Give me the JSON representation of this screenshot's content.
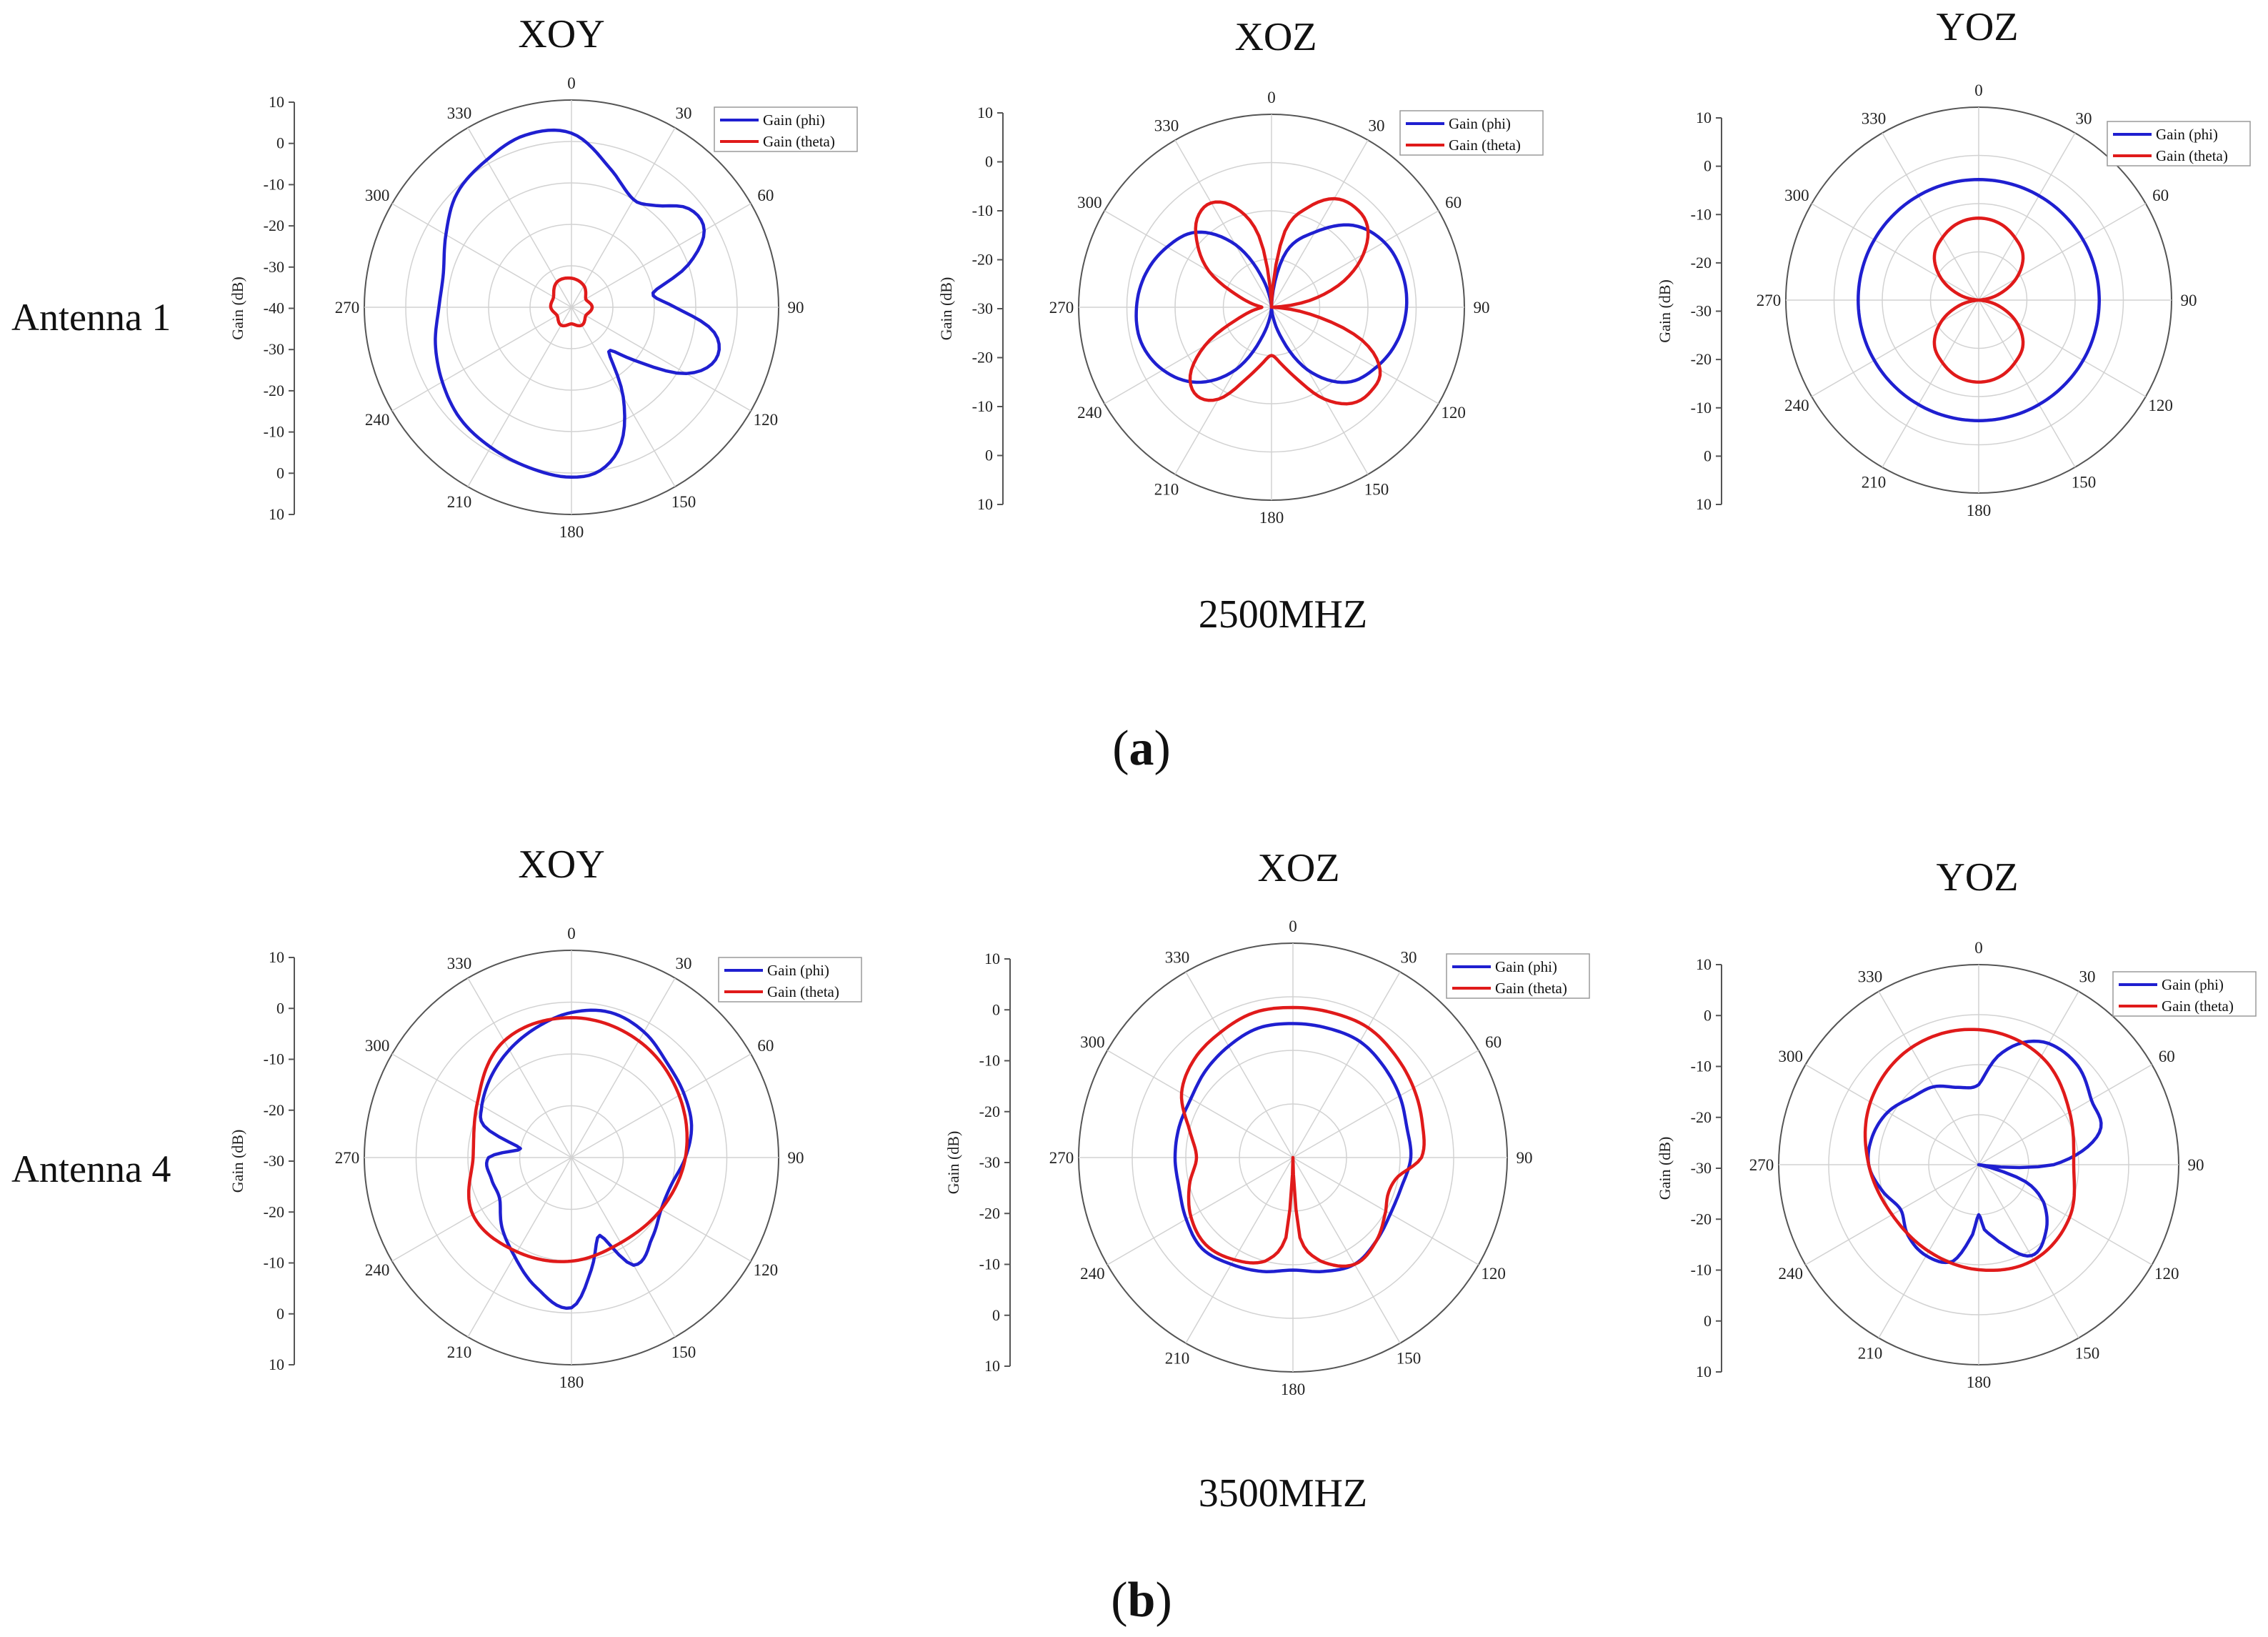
{
  "figure": {
    "row_a": {
      "label": "Antenna 1",
      "frequency": "2500MHZ",
      "caption_letter": "a"
    },
    "row_b": {
      "label": "Antenna 4",
      "frequency": "3500MHZ",
      "caption_letter": "b"
    }
  },
  "colors": {
    "phi": "#1f1fd0",
    "theta": "#e01a1a",
    "grid": "#d2d2d2",
    "axis": "#555555"
  },
  "chart_data": [
    {
      "type": "polar-line",
      "title": "XOY",
      "row": "a",
      "ylabel": "Gain (dB)",
      "radial_ticks": [
        "10",
        "0",
        "-10",
        "-20",
        "-30",
        "-40",
        "-30",
        "-20",
        "-10",
        "0",
        "10"
      ],
      "r_range": [
        -40,
        10
      ],
      "angle_ticks": [
        "0",
        "30",
        "60",
        "90",
        "120",
        "150",
        "180",
        "210",
        "240",
        "270",
        "300",
        "330"
      ],
      "legend": [
        "Gain (phi)",
        "Gain (theta)"
      ],
      "series": [
        {
          "name": "Gain (phi)",
          "angles": [
            0,
            15,
            30,
            40,
            50,
            60,
            70,
            80,
            90,
            100,
            110,
            120,
            130,
            140,
            150,
            160,
            170,
            180,
            195,
            210,
            225,
            240,
            255,
            270,
            285,
            300,
            315,
            330,
            345
          ],
          "values": [
            2,
            -5,
            -10,
            -8,
            -3,
            -3,
            -10,
            -20,
            -15,
            -5,
            -3,
            -8,
            -20,
            -26,
            -15,
            -5,
            0,
            1,
            0,
            -1,
            -2,
            -4,
            -6,
            -8,
            -8,
            -5,
            -1,
            1,
            3
          ]
        },
        {
          "name": "Gain (theta)",
          "angles": [
            0,
            30,
            60,
            90,
            120,
            150,
            180,
            210,
            240,
            270,
            300,
            330
          ],
          "values": [
            -33,
            -34,
            -36,
            -35,
            -36,
            -35,
            -36,
            -35,
            -36,
            -35,
            -35,
            -33
          ]
        }
      ]
    },
    {
      "type": "polar-line",
      "title": "XOZ",
      "row": "a",
      "ylabel": "Gain (dB)",
      "radial_ticks": [
        "10",
        "0",
        "-10",
        "-20",
        "-30",
        "-20",
        "-10",
        "0",
        "10"
      ],
      "r_range": [
        -30,
        10
      ],
      "angle_ticks": [
        "0",
        "30",
        "60",
        "90",
        "120",
        "150",
        "180",
        "210",
        "240",
        "270",
        "300",
        "330"
      ],
      "legend": [
        "Gain (phi)",
        "Gain (theta)"
      ],
      "series": [
        {
          "name": "Gain (phi)",
          "angles": [
            0,
            15,
            30,
            45,
            60,
            75,
            90,
            105,
            120,
            135,
            150,
            165,
            180,
            195,
            210,
            225,
            240,
            255,
            270,
            285,
            300,
            315,
            330,
            345
          ],
          "values": [
            -30,
            -18,
            -12,
            -6,
            -3,
            -2,
            -2,
            -3,
            -5,
            -8,
            -15,
            -25,
            -30,
            -25,
            -15,
            -8,
            -4,
            -2,
            -2,
            -3,
            -5,
            -8,
            -15,
            -25
          ]
        },
        {
          "name": "Gain (theta)",
          "angles": [
            0,
            10,
            20,
            30,
            40,
            50,
            60,
            70,
            80,
            90,
            100,
            110,
            120,
            130,
            140,
            150,
            160,
            170,
            180,
            190,
            200,
            210,
            220,
            230,
            240,
            250,
            260,
            270,
            280,
            290,
            300,
            310,
            320,
            330,
            340,
            350
          ],
          "values": [
            -30,
            -14,
            -8,
            -4,
            -3,
            -4,
            -8,
            -14,
            -22,
            -30,
            -22,
            -10,
            -4,
            -3,
            -4,
            -8,
            -14,
            -18,
            -20,
            -18,
            -14,
            -8,
            -6,
            -8,
            -14,
            -22,
            -26,
            -28,
            -26,
            -22,
            -15,
            -10,
            -6,
            -5,
            -8,
            -15
          ]
        }
      ]
    },
    {
      "type": "polar-line",
      "title": "YOZ",
      "row": "a",
      "ylabel": "Gain (dB)",
      "radial_ticks": [
        "10",
        "0",
        "-10",
        "-20",
        "-30",
        "-20",
        "-10",
        "0",
        "10"
      ],
      "r_range": [
        -30,
        10
      ],
      "angle_ticks": [
        "0",
        "30",
        "60",
        "90",
        "120",
        "150",
        "180",
        "210",
        "240",
        "270",
        "300",
        "330"
      ],
      "legend": [
        "Gain (phi)",
        "Gain (theta)"
      ],
      "series": [
        {
          "name": "Gain (phi)",
          "angles": [
            0,
            30,
            60,
            90,
            120,
            150,
            180,
            210,
            240,
            270,
            300,
            330
          ],
          "values": [
            -5,
            -5,
            -5,
            -5,
            -5,
            -5,
            -5,
            -5,
            -5,
            -5,
            -5,
            -5
          ]
        },
        {
          "name": "Gain (theta)",
          "angles": [
            0,
            15,
            30,
            45,
            60,
            75,
            90,
            105,
            120,
            135,
            150,
            165,
            180,
            195,
            210,
            225,
            240,
            255,
            270,
            285,
            300,
            315,
            330,
            345
          ],
          "values": [
            -13,
            -13.5,
            -15,
            -17,
            -21,
            -26,
            -30,
            -26,
            -21,
            -17,
            -15,
            -13.5,
            -13,
            -13.5,
            -15,
            -17,
            -21,
            -26,
            -30,
            -26,
            -21,
            -17,
            -15,
            -13.5
          ]
        }
      ]
    },
    {
      "type": "polar-line",
      "title": "XOY",
      "row": "b",
      "ylabel": "Gain (dB)",
      "radial_ticks": [
        "10",
        "0",
        "-10",
        "-20",
        "-30",
        "-20",
        "-10",
        "0",
        "10"
      ],
      "r_range": [
        -30,
        10
      ],
      "angle_ticks": [
        "0",
        "30",
        "60",
        "90",
        "120",
        "150",
        "180",
        "210",
        "240",
        "270",
        "300",
        "330"
      ],
      "legend": [
        "Gain (phi)",
        "Gain (theta)"
      ],
      "series": [
        {
          "name": "Gain (phi)",
          "angles": [
            0,
            15,
            30,
            45,
            60,
            75,
            90,
            105,
            120,
            135,
            150,
            160,
            170,
            180,
            195,
            210,
            225,
            240,
            255,
            270,
            280,
            290,
            300,
            315,
            330,
            345
          ],
          "values": [
            -2,
            -1,
            -2,
            -4,
            -5,
            -6,
            -8,
            -10,
            -10,
            -8,
            -6,
            -14,
            -8,
            -1,
            -4,
            -8,
            -11,
            -14,
            -14,
            -14,
            -20,
            -12,
            -10,
            -8,
            -6,
            -4
          ]
        },
        {
          "name": "Gain (theta)",
          "angles": [
            0,
            30,
            60,
            90,
            120,
            150,
            180,
            210,
            240,
            270,
            300,
            330
          ],
          "values": [
            -3,
            -4,
            -6,
            -8,
            -10,
            -11,
            -10,
            -9,
            -8,
            -11,
            -9,
            -4
          ]
        }
      ]
    },
    {
      "type": "polar-line",
      "title": "XOZ",
      "row": "b",
      "ylabel": "Gain (dB)",
      "radial_ticks": [
        "10",
        "0",
        "-10",
        "-20",
        "-30",
        "-20",
        "-10",
        "0",
        "10"
      ],
      "r_range": [
        -30,
        10
      ],
      "angle_ticks": [
        "0",
        "30",
        "60",
        "90",
        "120",
        "150",
        "180",
        "210",
        "240",
        "270",
        "300",
        "330"
      ],
      "legend": [
        "Gain (phi)",
        "Gain (theta)"
      ],
      "series": [
        {
          "name": "Gain (phi)",
          "angles": [
            0,
            15,
            30,
            45,
            60,
            75,
            90,
            105,
            120,
            135,
            150,
            165,
            180,
            195,
            210,
            225,
            240,
            255,
            270,
            285,
            300,
            315,
            330,
            345
          ],
          "values": [
            -5,
            -5,
            -5,
            -6,
            -7,
            -8,
            -8,
            -9,
            -9,
            -8,
            -7,
            -8,
            -9,
            -8,
            -7,
            -6,
            -7,
            -8,
            -8,
            -8,
            -8,
            -7,
            -6,
            -5
          ]
        },
        {
          "name": "Gain (theta)",
          "angles": [
            0,
            15,
            30,
            45,
            60,
            75,
            90,
            100,
            110,
            120,
            135,
            150,
            165,
            175,
            180,
            185,
            195,
            210,
            225,
            240,
            255,
            270,
            285,
            300,
            315,
            330,
            345
          ],
          "values": [
            -2,
            -2,
            -2,
            -3,
            -4,
            -5,
            -6,
            -10,
            -11,
            -10,
            -8,
            -7,
            -10,
            -15,
            -30,
            -15,
            -10,
            -8,
            -7,
            -8,
            -10,
            -12,
            -10,
            -6,
            -4,
            -3,
            -2
          ]
        }
      ]
    },
    {
      "type": "polar-line",
      "title": "YOZ",
      "row": "b",
      "ylabel": "Gain (dB)",
      "radial_ticks": [
        "10",
        "0",
        "-10",
        "-20",
        "-30",
        "-20",
        "-10",
        "0",
        "10"
      ],
      "r_range": [
        -30,
        10
      ],
      "angle_ticks": [
        "0",
        "30",
        "60",
        "90",
        "120",
        "150",
        "180",
        "210",
        "240",
        "270",
        "300",
        "330"
      ],
      "legend": [
        "Gain (phi)",
        "Gain (theta)"
      ],
      "series": [
        {
          "name": "Gain (phi)",
          "angles": [
            0,
            10,
            20,
            30,
            45,
            60,
            75,
            90,
            100,
            110,
            120,
            135,
            150,
            165,
            175,
            180,
            185,
            195,
            210,
            225,
            240,
            255,
            270,
            285,
            300,
            315,
            330,
            345
          ],
          "values": [
            -14,
            -8,
            -4,
            -2,
            -2,
            -4,
            -5,
            -15,
            -30,
            -20,
            -15,
            -11,
            -9,
            -14,
            -17,
            -20,
            -16,
            -10,
            -9,
            -10,
            -12,
            -10,
            -8,
            -8,
            -9,
            -11,
            -12,
            -14
          ]
        },
        {
          "name": "Gain (theta)",
          "angles": [
            0,
            30,
            60,
            90,
            120,
            150,
            180,
            210,
            240,
            270,
            300,
            330
          ],
          "values": [
            -3,
            -5,
            -9,
            -11,
            -9,
            -8,
            -9,
            -10,
            -10,
            -8,
            -5,
            -3
          ]
        }
      ]
    }
  ]
}
